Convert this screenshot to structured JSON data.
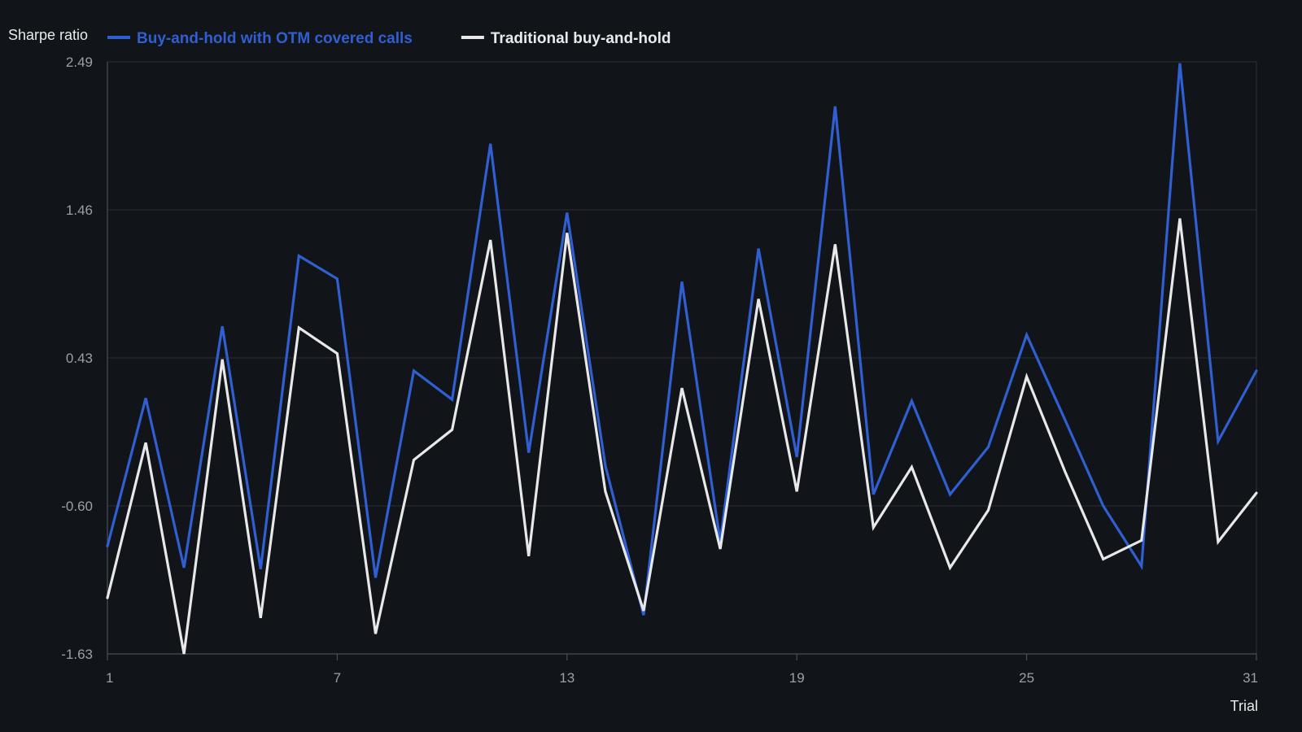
{
  "chart_data": {
    "type": "line",
    "title": "",
    "xlabel": "Trial",
    "ylabel": "Sharpe ratio",
    "x": [
      1,
      2,
      3,
      4,
      5,
      6,
      7,
      8,
      9,
      10,
      11,
      12,
      13,
      14,
      15,
      16,
      17,
      18,
      19,
      20,
      21,
      22,
      23,
      24,
      25,
      26,
      27,
      28,
      29,
      30,
      31
    ],
    "xticks": [
      1,
      7,
      13,
      19,
      25,
      31
    ],
    "yticks": [
      2.49,
      1.46,
      0.43,
      -0.6,
      -1.63
    ],
    "ytick_labels": [
      "2.49",
      "1.46",
      "0.43",
      "-0.60",
      "-1.63"
    ],
    "xlim": [
      1,
      31
    ],
    "ylim": [
      -1.63,
      2.49
    ],
    "grid": true,
    "legend_position": "top-left",
    "series": [
      {
        "name": "Buy-and-hold with OTM covered calls",
        "color": "#2f5fd0",
        "values": [
          -0.88,
          0.15,
          -1.03,
          0.65,
          -1.04,
          1.14,
          0.98,
          -1.1,
          0.34,
          0.14,
          1.92,
          -0.23,
          1.44,
          -0.32,
          -1.36,
          0.96,
          -0.85,
          1.19,
          -0.26,
          2.18,
          -0.52,
          0.13,
          -0.52,
          -0.19,
          0.59,
          0.0,
          -0.6,
          -1.02,
          2.48,
          -0.15,
          0.34
        ]
      },
      {
        "name": "Traditional buy-and-hold",
        "color": "#e8e8e8",
        "values": [
          -1.24,
          -0.16,
          -1.63,
          0.42,
          -1.38,
          0.64,
          0.46,
          -1.49,
          -0.28,
          -0.07,
          1.25,
          -0.95,
          1.3,
          -0.5,
          -1.33,
          0.22,
          -0.9,
          0.84,
          -0.5,
          1.22,
          -0.75,
          -0.33,
          -1.03,
          -0.63,
          0.3,
          -0.36,
          -0.97,
          -0.84,
          1.4,
          -0.85,
          -0.51
        ]
      }
    ]
  }
}
